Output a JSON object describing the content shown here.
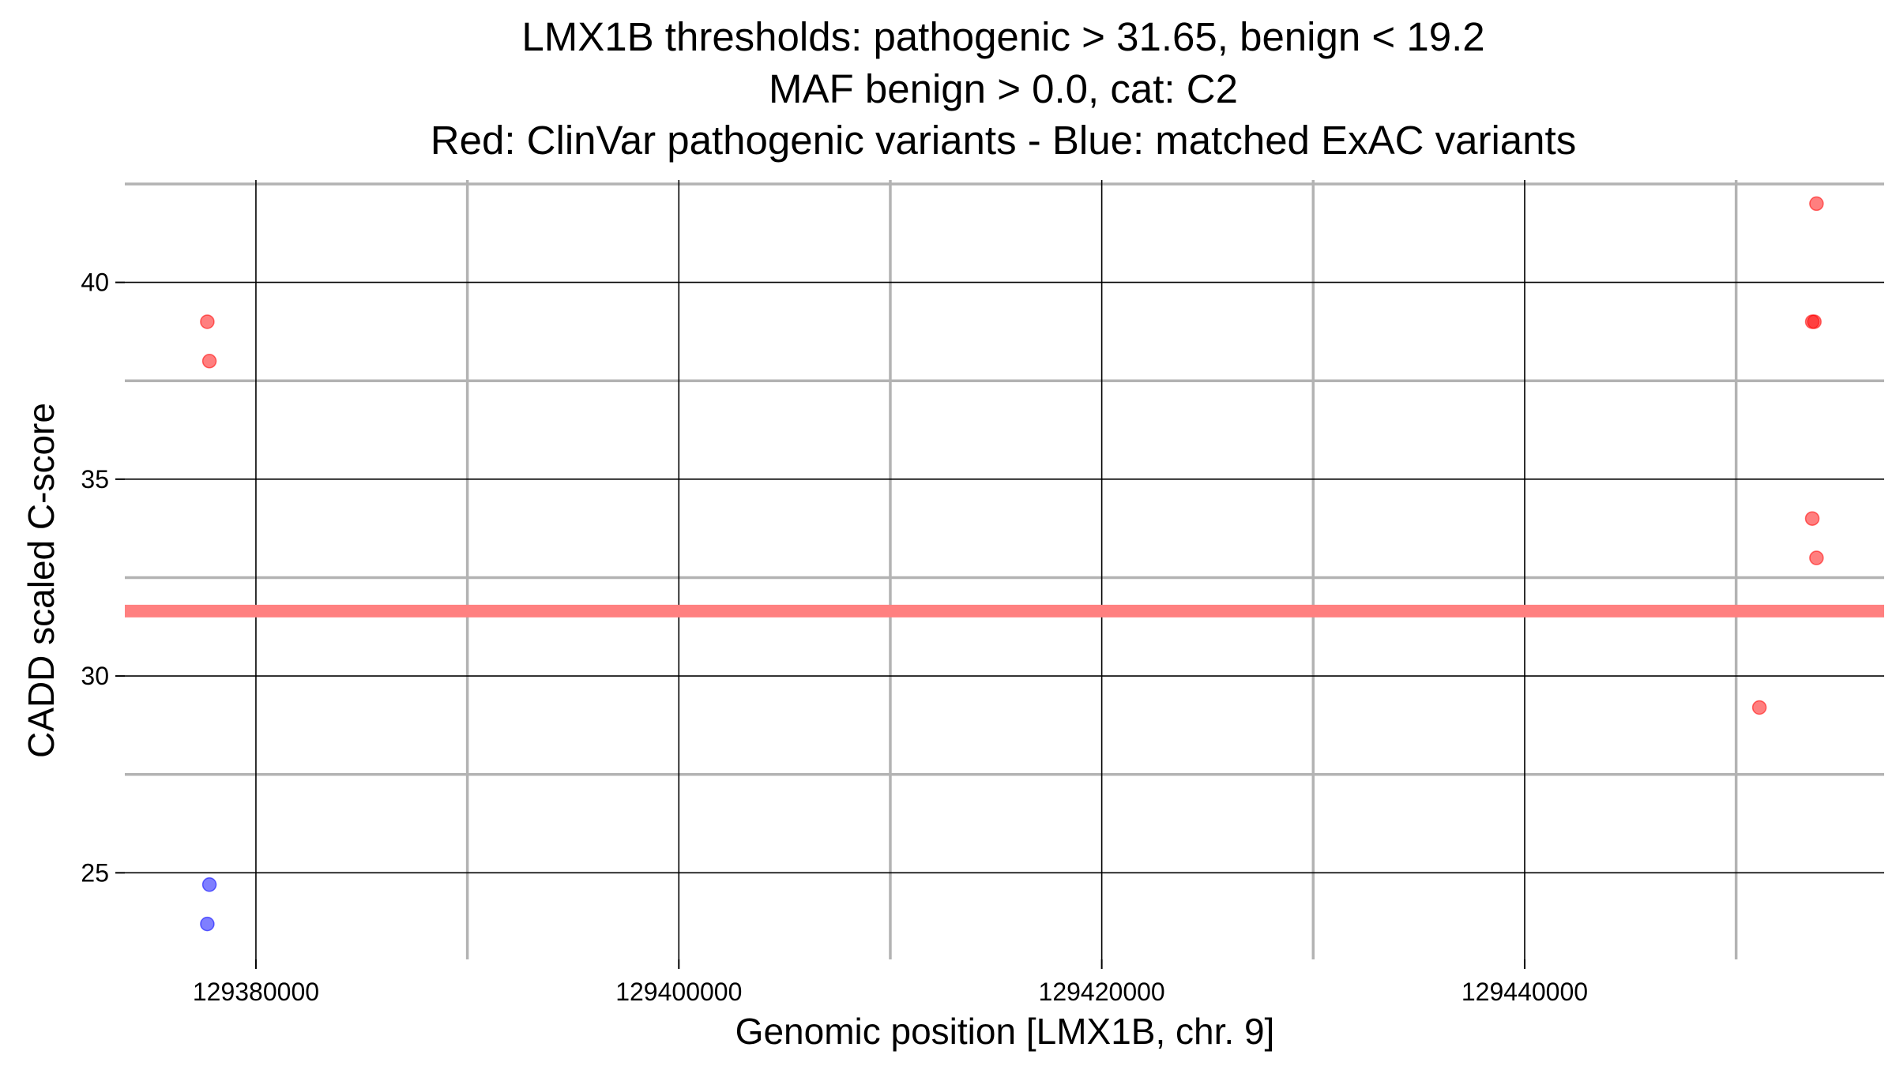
{
  "chart_data": {
    "type": "scatter",
    "title_lines": [
      "LMX1B thresholds: pathogenic > 31.65, benign < 19.2",
      "MAF benign > 0.0, cat: C2",
      "Red: ClinVar pathogenic variants - Blue: matched ExAC variants"
    ],
    "xlabel": "Genomic position [LMX1B, chr. 9]",
    "ylabel": "CADD scaled C-score",
    "xlim": [
      129373800,
      129457000
    ],
    "ylim": [
      22.8,
      42.6
    ],
    "x_ticks": [
      129380000,
      129400000,
      129420000,
      129440000
    ],
    "x_tick_labels": [
      "129380000",
      "129400000",
      "129420000",
      "129440000"
    ],
    "x_minor_ticks": [
      129390000,
      129410000,
      129430000,
      129450000
    ],
    "y_ticks": [
      25,
      30,
      35,
      40
    ],
    "y_tick_labels": [
      "25",
      "30",
      "35",
      "40"
    ],
    "y_minor_ticks": [
      27.5,
      32.5,
      37.5,
      42.5
    ],
    "grid": true,
    "threshold_line": {
      "y": 31.65,
      "color": "#ff8080"
    },
    "series": [
      {
        "color": "#ff0000",
        "points": [
          {
            "x": 129377700,
            "y": 39.0
          },
          {
            "x": 129377800,
            "y": 38.0
          },
          {
            "x": 129453800,
            "y": 42.0
          },
          {
            "x": 129453600,
            "y": 39.0
          },
          {
            "x": 129453700,
            "y": 39.0
          },
          {
            "x": 129453600,
            "y": 34.0
          },
          {
            "x": 129453800,
            "y": 33.0
          },
          {
            "x": 129451100,
            "y": 29.2
          }
        ]
      },
      {
        "color": "#0000ff",
        "points": [
          {
            "x": 129377800,
            "y": 24.7
          },
          {
            "x": 129377700,
            "y": 23.7
          }
        ]
      }
    ]
  }
}
